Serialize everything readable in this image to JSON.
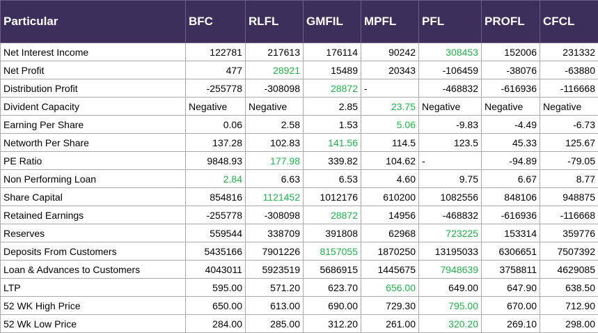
{
  "table": {
    "headers": [
      "Particular",
      "BFC",
      "RLFL",
      "GMFIL",
      "MPFL",
      "PFL",
      "PROFL",
      "CFCL"
    ],
    "highlight_color": "#22b14c",
    "header_bg": "#3d2f5b",
    "rows": [
      {
        "label": "Net Interest Income",
        "cells": [
          "122781",
          "217613",
          "176114",
          "90242",
          "308453",
          "152006",
          "231332"
        ],
        "highlight": 4
      },
      {
        "label": "Net Profit",
        "cells": [
          "477",
          "28921",
          "15489",
          "20343",
          "-106459",
          "-38076",
          "-63880"
        ],
        "highlight": 1
      },
      {
        "label": "Distribution Profit",
        "cells": [
          "-255778",
          "-308098",
          "28872",
          "-",
          "-468832",
          "-616936",
          "-116668"
        ],
        "highlight": 2
      },
      {
        "label": "Divident Capacity",
        "cells": [
          "Negative",
          "Negative",
          "2.85",
          "23.75",
          "Negative",
          "Negative",
          "Negative"
        ],
        "highlight": 3
      },
      {
        "label": "Earning Per Share",
        "cells": [
          "0.06",
          "2.58",
          "1.53",
          "5.06",
          "-9.83",
          "-4.49",
          "-6.73"
        ],
        "highlight": 3
      },
      {
        "label": "Networth Per Share",
        "cells": [
          "137.28",
          "102.83",
          "141.56",
          "114.5",
          "123.5",
          "45.33",
          "125.67"
        ],
        "highlight": 2
      },
      {
        "label": "PE Ratio",
        "cells": [
          "9848.93",
          "177.98",
          "339.82",
          "104.62",
          "-",
          "-94.89",
          "-79.05"
        ],
        "highlight": 1
      },
      {
        "label": "Non Performing Loan",
        "cells": [
          "2.84",
          "6.63",
          "6.53",
          "4.60",
          "9.75",
          "6.67",
          "8.77"
        ],
        "highlight": 0
      },
      {
        "label": "Share Capital",
        "cells": [
          "854816",
          "1121452",
          "1012176",
          "610200",
          "1082556",
          "848106",
          "948875"
        ],
        "highlight": 1
      },
      {
        "label": "Retained Earnings",
        "cells": [
          "-255778",
          "-308098",
          "28872",
          "14956",
          "-468832",
          "-616936",
          "-116668"
        ],
        "highlight": 2
      },
      {
        "label": "Reserves",
        "cells": [
          "559544",
          "338709",
          "391808",
          "62968",
          "723225",
          "153314",
          "359776"
        ],
        "highlight": 4
      },
      {
        "label": "Deposits From Customers",
        "cells": [
          "5435166",
          "7901226",
          "8157055",
          "1870250",
          "13195033",
          "6306651",
          "7507392"
        ],
        "highlight": 2
      },
      {
        "label": "Loan & Advances to Customers",
        "cells": [
          "4043011",
          "5923519",
          "5686915",
          "1445675",
          "7948639",
          "3758811",
          "4629085"
        ],
        "highlight": 4
      },
      {
        "label": "LTP",
        "cells": [
          "595.00",
          "571.20",
          "623.70",
          "656.00",
          "649.00",
          "647.90",
          "638.50"
        ],
        "highlight": 3
      },
      {
        "label": " 52 WK High Price",
        "cells": [
          "650.00",
          "613.00",
          "690.00",
          "729.30",
          "795.00",
          "670.00",
          "712.90"
        ],
        "highlight": 4
      },
      {
        "label": "52 Wk Low Price",
        "cells": [
          "284.00",
          "285.00",
          "312.20",
          "261.00",
          "320.20",
          "269.10",
          "298.00"
        ],
        "highlight": 4
      }
    ]
  }
}
